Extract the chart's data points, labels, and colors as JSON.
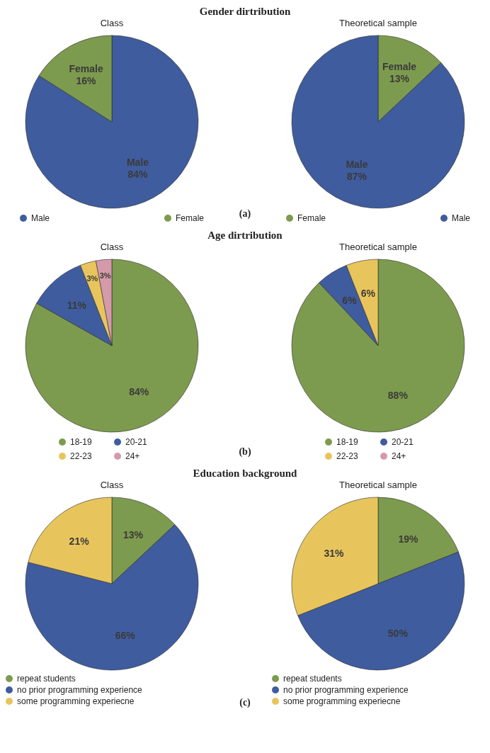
{
  "chart_data": [
    {
      "type": "pie",
      "title": "Gender dirtribution",
      "subtitle": "Class",
      "annotations": [
        "(a)"
      ],
      "categories": [
        "Male",
        "Female"
      ],
      "values": [
        84,
        16
      ],
      "colors": [
        "#3f5c9e",
        "#7d9b4e"
      ],
      "value_labels": [
        "Male 84%",
        "Female 16%"
      ],
      "legend": "bottom"
    },
    {
      "type": "pie",
      "subtitle": "Theoretical sample",
      "categories": [
        "Female",
        "Male"
      ],
      "values": [
        13,
        87
      ],
      "colors": [
        "#7d9b4e",
        "#3f5c9e"
      ],
      "value_labels": [
        "Female 13%",
        "Male 87%"
      ],
      "legend": "bottom"
    },
    {
      "type": "pie",
      "title": "Age dirtribution",
      "subtitle": "Class",
      "annotations": [
        "(b)"
      ],
      "categories": [
        "18-19",
        "20-21",
        "22-23",
        "24+"
      ],
      "values": [
        84,
        11,
        3,
        3
      ],
      "colors": [
        "#7d9b4e",
        "#3f5c9e",
        "#e8c55c",
        "#d49aaa"
      ],
      "value_labels": [
        "84%",
        "11%",
        "3%",
        "3%"
      ],
      "legend": "bottom"
    },
    {
      "type": "pie",
      "subtitle": "Theoretical sample",
      "categories": [
        "18-19",
        "20-21",
        "22-23",
        "24+"
      ],
      "values": [
        88,
        6,
        6,
        0
      ],
      "colors": [
        "#7d9b4e",
        "#3f5c9e",
        "#e8c55c",
        "#d49aaa"
      ],
      "value_labels": [
        "88%",
        "6%",
        "6%",
        null
      ],
      "legend": "bottom"
    },
    {
      "type": "pie",
      "title": "Education background",
      "subtitle": "Class",
      "annotations": [
        "(c)"
      ],
      "categories": [
        "repeat students",
        "no prior programming experience",
        "some programming experiecne"
      ],
      "values": [
        13,
        66,
        21
      ],
      "colors": [
        "#7d9b4e",
        "#3f5c9e",
        "#e8c55c"
      ],
      "value_labels": [
        "13%",
        "66%",
        "21%"
      ],
      "legend": "bottom"
    },
    {
      "type": "pie",
      "subtitle": "Theoretical sample",
      "categories": [
        "repeat students",
        "no prior programming experience",
        "some programming experiecne"
      ],
      "values": [
        19,
        50,
        31
      ],
      "colors": [
        "#7d9b4e",
        "#3f5c9e",
        "#e8c55c"
      ],
      "value_labels": [
        "19%",
        "50%",
        "31%"
      ],
      "legend": "bottom"
    }
  ]
}
